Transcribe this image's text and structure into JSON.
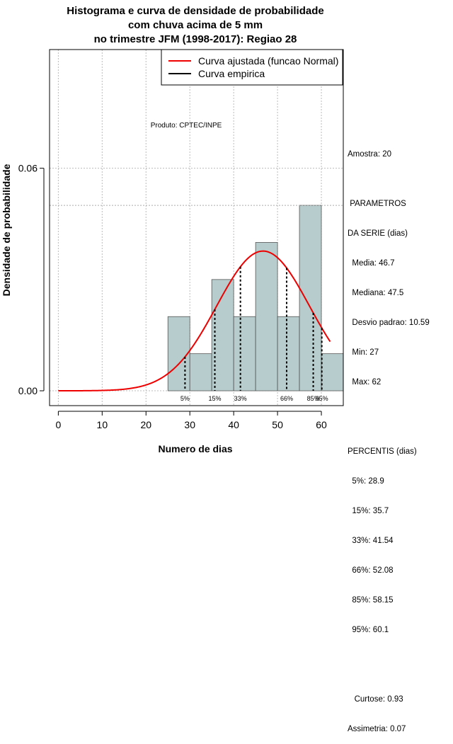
{
  "chart_data": {
    "type": "bar",
    "title_lines": [
      "Histograma e curva de densidade de probabilidade",
      "com chuva acima de 5 mm",
      "no trimestre JFM (1998-2017): Regiao 28"
    ],
    "xlabel": "Numero de dias",
    "ylabel": "Densidade de probabilidade",
    "xlim": [
      -2,
      65
    ],
    "ylim": [
      -0.004,
      0.092
    ],
    "x_ticks": [
      0,
      10,
      20,
      30,
      40,
      50,
      60
    ],
    "y_ticks": [
      0.0,
      0.06
    ],
    "y_tick_labels": [
      "0.00",
      "0.06"
    ],
    "grid": true,
    "bin_width": 5,
    "bins": [
      {
        "x0": 25,
        "x1": 30,
        "density": 0.02
      },
      {
        "x0": 30,
        "x1": 35,
        "density": 0.01
      },
      {
        "x0": 35,
        "x1": 40,
        "density": 0.03
      },
      {
        "x0": 40,
        "x1": 45,
        "density": 0.02
      },
      {
        "x0": 45,
        "x1": 50,
        "density": 0.04
      },
      {
        "x0": 50,
        "x1": 55,
        "density": 0.02
      },
      {
        "x0": 55,
        "x1": 60,
        "density": 0.05
      },
      {
        "x0": 60,
        "x1": 65,
        "density": 0.01
      }
    ],
    "reference_line_y": 0.05,
    "normal_curve": {
      "mean": 46.7,
      "sd": 10.59,
      "x_range": [
        0,
        62
      ],
      "color": "#ee0000"
    },
    "percentile_lines": [
      {
        "label": "5%",
        "x": 28.9
      },
      {
        "label": "15%",
        "x": 35.7
      },
      {
        "label": "33%",
        "x": 41.54
      },
      {
        "label": "66%",
        "x": 52.08
      },
      {
        "label": "85%",
        "x": 58.15
      },
      {
        "label": "95%",
        "x": 60.1
      }
    ],
    "legend": {
      "position": "top-right",
      "entries": [
        {
          "label": "Curva ajustada (funcao Normal)",
          "color": "#ee0000"
        },
        {
          "label": "Curva empirica",
          "color": "#000000"
        }
      ]
    },
    "annotation": "Produto: CPTEC/INPE",
    "bar_color": "#b7cdcd",
    "stats_lines": [
      "Amostra: 20",
      "",
      " PARAMETROS",
      "DA SERIE (dias)",
      "  Media: 46.7",
      "  Mediana: 47.5",
      "  Desvio padrao: 10.59",
      "  Min: 27",
      "  Max: 62",
      "",
      "",
      "PERCENTIS (dias)",
      "  5%: 28.9",
      "  15%: 35.7",
      "  33%: 41.54",
      "  66%: 52.08",
      "  85%: 58.15",
      "  95%: 60.1",
      "",
      "",
      "   Curtose: 0.93",
      "Assimetria: 0.07"
    ]
  }
}
